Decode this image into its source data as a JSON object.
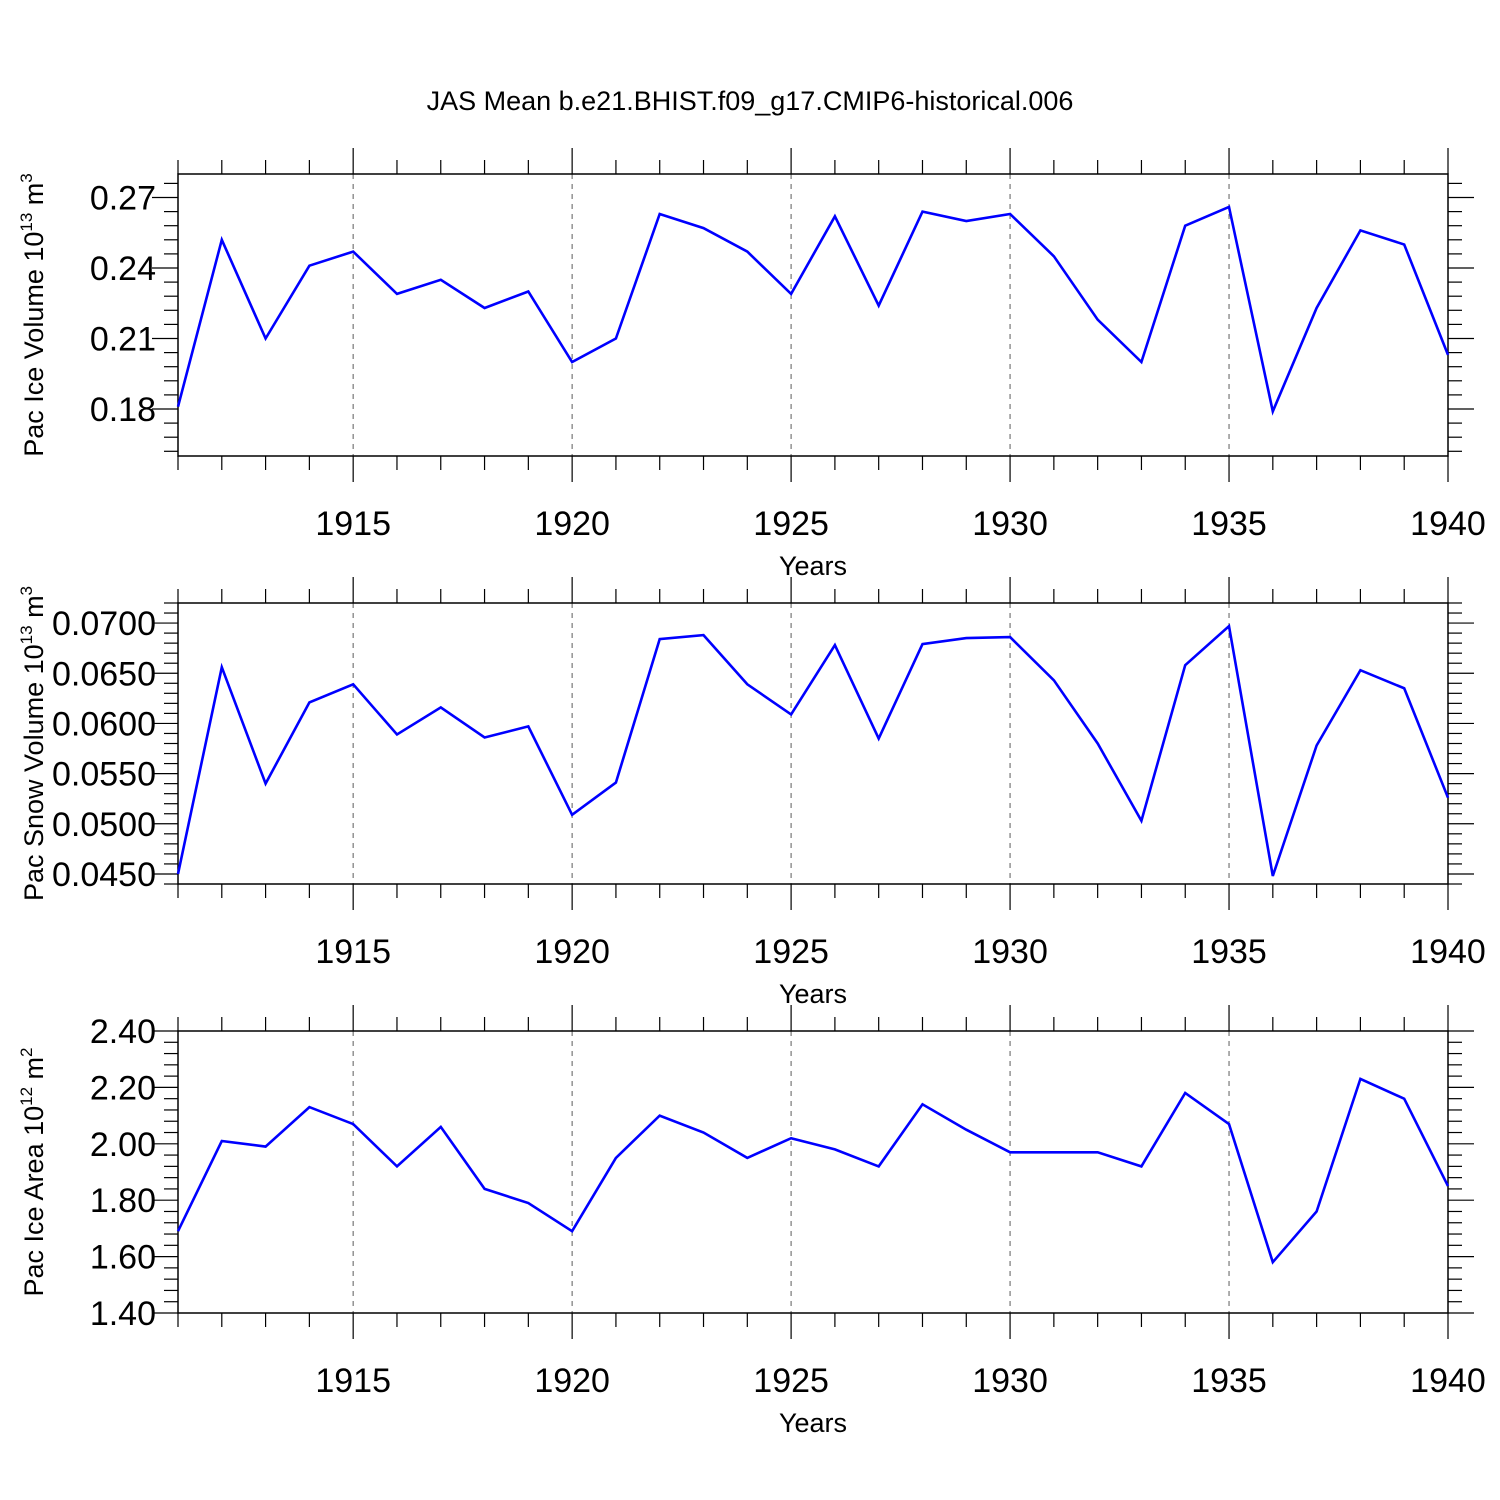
{
  "title": "JAS Mean b.e21.BHIST.f09_g17.CMIP6-historical.006",
  "colors": {
    "series": "#0000ff",
    "axes": "#000000",
    "grid": "#777777"
  },
  "chart_data": [
    {
      "type": "line",
      "title": "",
      "xlabel": "Years",
      "ylabel": {
        "main": "Pac Ice Volume 10",
        "sup": "13",
        "unit": " m",
        "unit_sup": "3"
      },
      "xlim": [
        1911,
        1940
      ],
      "ylim": [
        0.16,
        0.28
      ],
      "xticks": [
        1915,
        1920,
        1925,
        1930,
        1935,
        1940
      ],
      "yticks": [
        0.18,
        0.21,
        0.24,
        0.27
      ],
      "ytick_labels": [
        "0.18",
        "0.21",
        "0.24",
        "0.27"
      ],
      "grid": "vertical dashed at major x ticks",
      "series": [
        {
          "x": [
            1911,
            1912,
            1913,
            1914,
            1915,
            1916,
            1917,
            1918,
            1919,
            1920,
            1921,
            1922,
            1923,
            1924,
            1925,
            1926,
            1927,
            1928,
            1929,
            1930,
            1931,
            1932,
            1933,
            1934,
            1935,
            1936,
            1937,
            1938,
            1939,
            1940
          ],
          "values": [
            0.181,
            0.252,
            0.21,
            0.241,
            0.247,
            0.229,
            0.235,
            0.223,
            0.23,
            0.2,
            0.21,
            0.263,
            0.257,
            0.247,
            0.229,
            0.262,
            0.224,
            0.264,
            0.26,
            0.263,
            0.245,
            0.218,
            0.2,
            0.258,
            0.266,
            0.179,
            0.223,
            0.256,
            0.25,
            0.203
          ]
        }
      ]
    },
    {
      "type": "line",
      "title": "",
      "xlabel": "Years",
      "ylabel": {
        "main": "Pac Snow Volume 10",
        "sup": "13",
        "unit": " m",
        "unit_sup": "3"
      },
      "xlim": [
        1911,
        1940
      ],
      "ylim": [
        0.044,
        0.072
      ],
      "xticks": [
        1915,
        1920,
        1925,
        1930,
        1935,
        1940
      ],
      "yticks": [
        0.045,
        0.05,
        0.055,
        0.06,
        0.065,
        0.07
      ],
      "ytick_labels": [
        "0.0450",
        "0.0500",
        "0.0550",
        "0.0600",
        "0.0650",
        "0.0700"
      ],
      "grid": "vertical dashed at major x ticks",
      "series": [
        {
          "x": [
            1911,
            1912,
            1913,
            1914,
            1915,
            1916,
            1917,
            1918,
            1919,
            1920,
            1921,
            1922,
            1923,
            1924,
            1925,
            1926,
            1927,
            1928,
            1929,
            1930,
            1931,
            1932,
            1933,
            1934,
            1935,
            1936,
            1937,
            1938,
            1939,
            1940
          ],
          "values": [
            0.045,
            0.0656,
            0.054,
            0.0621,
            0.0639,
            0.0589,
            0.0616,
            0.0586,
            0.0597,
            0.0509,
            0.0541,
            0.0684,
            0.0688,
            0.0639,
            0.0609,
            0.0678,
            0.0585,
            0.0679,
            0.0685,
            0.0686,
            0.0643,
            0.058,
            0.0503,
            0.0658,
            0.0697,
            0.0448,
            0.0578,
            0.0653,
            0.0635,
            0.0526
          ]
        }
      ]
    },
    {
      "type": "line",
      "title": "",
      "xlabel": "Years",
      "ylabel": {
        "main": "Pac Ice Area 10",
        "sup": "12",
        "unit": " m",
        "unit_sup": "2"
      },
      "xlim": [
        1911,
        1940
      ],
      "ylim": [
        1.4,
        2.4
      ],
      "xticks": [
        1915,
        1920,
        1925,
        1930,
        1935,
        1940
      ],
      "yticks": [
        1.4,
        1.6,
        1.8,
        2.0,
        2.2,
        2.4
      ],
      "ytick_labels": [
        "1.40",
        "1.60",
        "1.80",
        "2.00",
        "2.20",
        "2.40"
      ],
      "grid": "vertical dashed at major x ticks",
      "series": [
        {
          "x": [
            1911,
            1912,
            1913,
            1914,
            1915,
            1916,
            1917,
            1918,
            1919,
            1920,
            1921,
            1922,
            1923,
            1924,
            1925,
            1926,
            1927,
            1928,
            1929,
            1930,
            1931,
            1932,
            1933,
            1934,
            1935,
            1936,
            1937,
            1938,
            1939,
            1940
          ],
          "values": [
            1.69,
            2.01,
            1.99,
            2.13,
            2.07,
            1.92,
            2.06,
            1.84,
            1.79,
            1.69,
            1.95,
            2.1,
            2.04,
            1.95,
            2.02,
            1.98,
            1.92,
            2.14,
            2.05,
            1.97,
            1.97,
            1.97,
            1.92,
            2.18,
            2.07,
            1.58,
            1.76,
            2.23,
            2.16,
            1.85
          ]
        }
      ]
    }
  ]
}
